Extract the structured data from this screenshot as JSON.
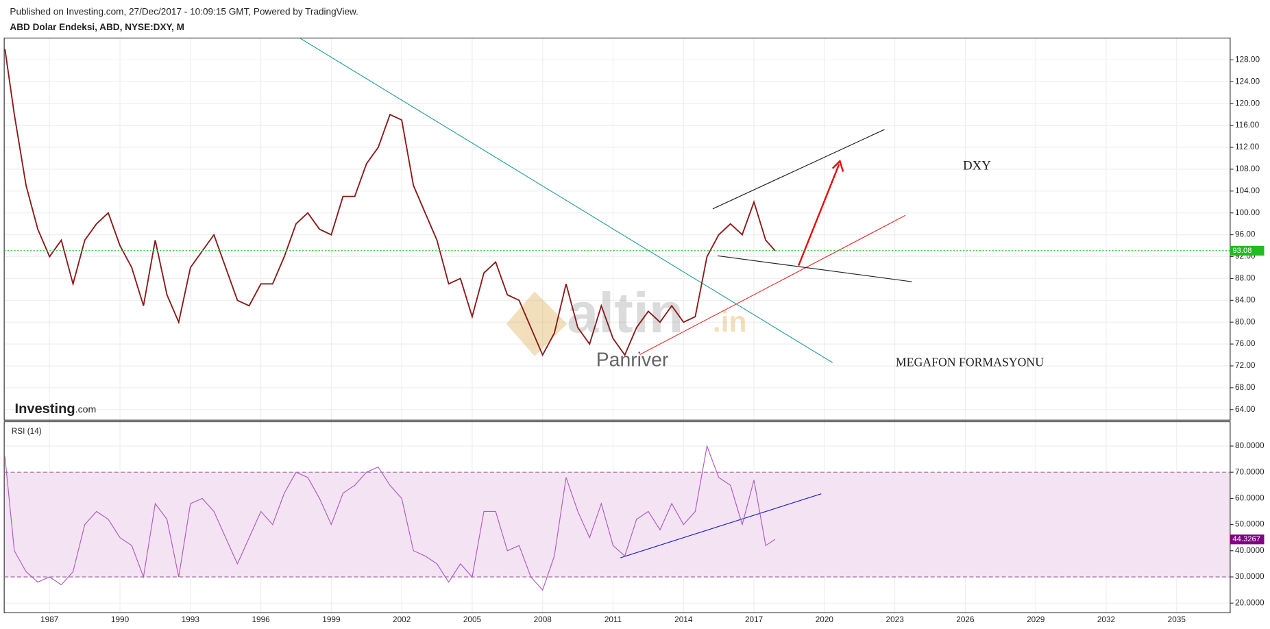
{
  "header": {
    "published": "Published on Investing.com, 27/Dec/2017 - 10:09:15 GMT, Powered by TradingView.",
    "logo": "Investing",
    "logo_suffix": ".com"
  },
  "chart_data": [
    {
      "type": "line",
      "title": "ABD Dolar Endeksi, ABD, NYSE:DXY, M",
      "color": "#8b1a1a",
      "x": [
        1985.1,
        1985.5,
        1986,
        1986.5,
        1987,
        1987.5,
        1988,
        1988.5,
        1989,
        1989.5,
        1990,
        1990.5,
        1991,
        1991.5,
        1992,
        1992.5,
        1993,
        1993.5,
        1994,
        1994.5,
        1995,
        1995.5,
        1996,
        1996.5,
        1997,
        1997.5,
        1998,
        1998.5,
        1999,
        1999.5,
        2000,
        2000.5,
        2001,
        2001.5,
        2002,
        2002.5,
        2003,
        2003.5,
        2004,
        2004.5,
        2005,
        2005.5,
        2006,
        2006.5,
        2007,
        2007.5,
        2008,
        2008.5,
        2009,
        2009.5,
        2010,
        2010.5,
        2011,
        2011.5,
        2012,
        2012.5,
        2013,
        2013.5,
        2014,
        2014.5,
        2015,
        2015.5,
        2016,
        2016.5,
        2017,
        2017.5,
        2017.9
      ],
      "values": [
        130,
        118,
        105,
        97,
        92,
        95,
        87,
        95,
        98,
        100,
        94,
        90,
        83,
        95,
        85,
        80,
        90,
        93,
        96,
        90,
        84,
        83,
        87,
        87,
        92,
        98,
        100,
        97,
        96,
        103,
        103,
        109,
        112,
        118,
        117,
        105,
        100,
        95,
        87,
        88,
        81,
        89,
        91,
        85,
        84,
        79,
        74,
        78,
        87,
        79,
        76,
        83,
        77,
        74,
        79,
        82,
        80,
        83,
        80,
        81,
        92,
        96,
        98,
        96,
        102,
        95,
        93.08
      ],
      "last_value": 93.08,
      "xlim": [
        1985.07,
        2037.28
      ],
      "xticks": [
        1987,
        1990,
        1993,
        1996,
        1999,
        2002,
        2005,
        2008,
        2011,
        2014,
        2017,
        2020,
        2023,
        2026,
        2029,
        2032,
        2035
      ],
      "ylim": [
        62.07,
        132
      ],
      "yticks": [
        {
          "value": 64,
          "label": "64.00"
        },
        {
          "value": 68,
          "label": "68.00"
        },
        {
          "value": 72,
          "label": "72.00"
        },
        {
          "value": 76,
          "label": "76.00"
        },
        {
          "value": 80,
          "label": "80.00"
        },
        {
          "value": 84,
          "label": "84.00"
        },
        {
          "value": 88,
          "label": "88.00"
        },
        {
          "value": 92,
          "label": "92.00"
        },
        {
          "value": 96,
          "label": "96.00"
        },
        {
          "value": 100,
          "label": "100.00"
        },
        {
          "value": 104,
          "label": "104.00"
        },
        {
          "value": 108,
          "label": "108.00"
        },
        {
          "value": 112,
          "label": "112.00"
        },
        {
          "value": 116,
          "label": "116.00"
        },
        {
          "value": 120,
          "label": "120.00"
        },
        {
          "value": 124,
          "label": "124.00"
        },
        {
          "value": 128,
          "label": "128.00"
        }
      ],
      "annotations": [
        "DXY",
        "MEGAFON FORMASYONU",
        "Panriver"
      ],
      "watermark": [
        "altin",
        ".in"
      ]
    },
    {
      "type": "line",
      "title": "RSI (14)",
      "color": "#b05cc0",
      "x": [
        1985.1,
        1985.5,
        1986,
        1986.5,
        1987,
        1987.5,
        1988,
        1988.5,
        1989,
        1989.5,
        1990,
        1990.5,
        1991,
        1991.5,
        1992,
        1992.5,
        1993,
        1993.5,
        1994,
        1994.5,
        1995,
        1995.5,
        1996,
        1996.5,
        1997,
        1997.5,
        1998,
        1998.5,
        1999,
        1999.5,
        2000,
        2000.5,
        2001,
        2001.5,
        2002,
        2002.5,
        2003,
        2003.5,
        2004,
        2004.5,
        2005,
        2005.5,
        2006,
        2006.5,
        2007,
        2007.5,
        2008,
        2008.5,
        2009,
        2009.5,
        2010,
        2010.5,
        2011,
        2011.5,
        2012,
        2012.5,
        2013,
        2013.5,
        2014,
        2014.5,
        2015,
        2015.5,
        2016,
        2016.5,
        2017,
        2017.5,
        2017.9
      ],
      "values": [
        76,
        40,
        32,
        28,
        30,
        27,
        32,
        50,
        55,
        52,
        45,
        42,
        30,
        58,
        52,
        30,
        58,
        60,
        55,
        45,
        35,
        45,
        55,
        50,
        62,
        70,
        68,
        60,
        50,
        62,
        65,
        70,
        72,
        65,
        60,
        40,
        38,
        35,
        28,
        35,
        30,
        55,
        55,
        40,
        42,
        30,
        25,
        38,
        68,
        55,
        45,
        58,
        42,
        38,
        52,
        55,
        48,
        58,
        50,
        55,
        80,
        68,
        65,
        50,
        67,
        42,
        44.3267
      ],
      "last_value": 44.3267,
      "overbought": 70,
      "oversold": 30,
      "ylim": [
        16.29,
        89.28
      ],
      "yticks": [
        {
          "value": 20,
          "label": "20.0000"
        },
        {
          "value": 30,
          "label": "30.0000"
        },
        {
          "value": 40,
          "label": "40.0000"
        },
        {
          "value": 50,
          "label": "50.0000"
        },
        {
          "value": 60,
          "label": "60.0000"
        },
        {
          "value": 70,
          "label": "70.0000"
        },
        {
          "value": 80,
          "label": "80.0000"
        }
      ]
    }
  ]
}
